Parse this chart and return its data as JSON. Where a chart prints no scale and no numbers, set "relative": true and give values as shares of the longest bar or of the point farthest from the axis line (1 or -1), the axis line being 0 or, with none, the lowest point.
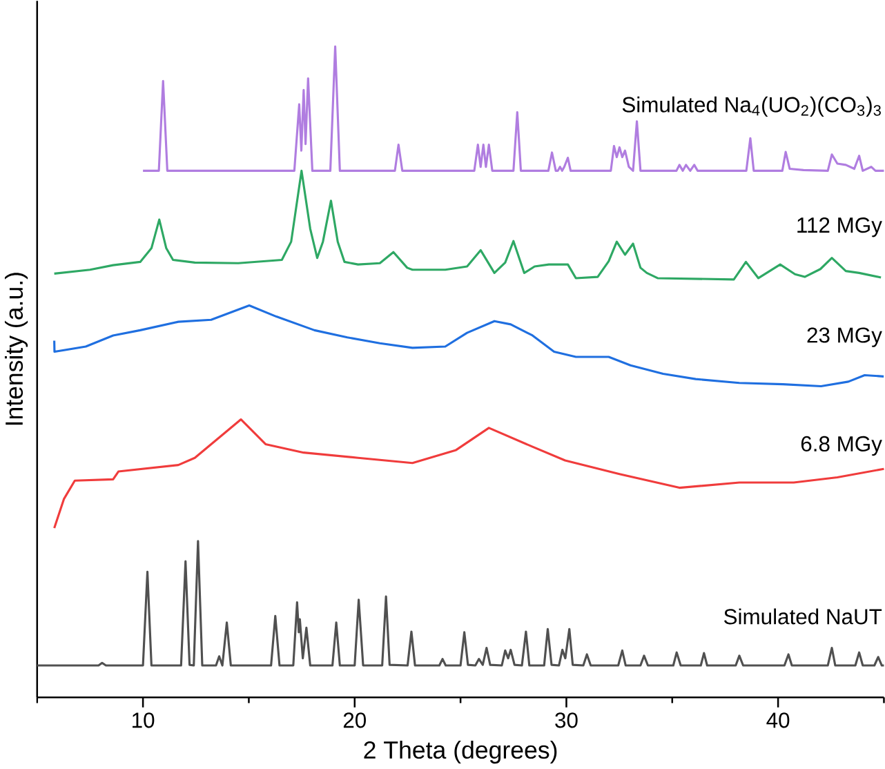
{
  "chart_data": {
    "type": "line",
    "relative": true,
    "xlabel": "2 Theta (degrees)",
    "ylabel": "Intensity (a.u.)",
    "xlim": [
      5,
      45
    ],
    "xticks": [
      {
        "value": 5,
        "label": null
      },
      10,
      {
        "value": 15,
        "label": null
      },
      20,
      {
        "value": 25,
        "label": null
      },
      30,
      {
        "value": 35,
        "label": null
      },
      40,
      {
        "value": 45,
        "label": null
      }
    ],
    "series": [
      {
        "name": "Simulated Na$_{4}$(UO$_{2}$)(CO$_{3}$)$_{3}$",
        "color": "#b07de0",
        "x": [
          10.0,
          10.75,
          10.95,
          11.15,
          17.15,
          17.38,
          17.48,
          17.59,
          17.68,
          17.8,
          18.0,
          18.85,
          19.08,
          19.3,
          21.9,
          22.07,
          22.25,
          25.65,
          25.82,
          25.95,
          26.08,
          26.2,
          26.34,
          26.5,
          27.5,
          27.68,
          27.85,
          29.15,
          29.32,
          29.5,
          29.6,
          29.7,
          29.8,
          29.9,
          30.07,
          30.2,
          32.1,
          32.25,
          32.38,
          32.51,
          32.64,
          32.77,
          32.95,
          33.15,
          33.33,
          33.5,
          35.2,
          35.34,
          35.5,
          35.65,
          35.85,
          36.04,
          36.2,
          38.5,
          38.69,
          38.85,
          40.2,
          40.36,
          40.55,
          41.2,
          42.35,
          42.54,
          42.8,
          43.2,
          43.6,
          43.83,
          44.0,
          44.4,
          44.6,
          45
        ],
        "values": [
          0.809,
          0.809,
          0.947,
          0.809,
          0.809,
          0.911,
          0.84,
          0.933,
          0.85,
          0.951,
          0.809,
          0.809,
          1.0,
          0.809,
          0.809,
          0.849,
          0.809,
          0.809,
          0.849,
          0.815,
          0.849,
          0.815,
          0.849,
          0.809,
          0.809,
          0.899,
          0.809,
          0.809,
          0.837,
          0.809,
          0.809,
          0.815,
          0.809,
          0.815,
          0.829,
          0.809,
          0.809,
          0.847,
          0.83,
          0.845,
          0.83,
          0.84,
          0.815,
          0.809,
          0.885,
          0.809,
          0.809,
          0.818,
          0.809,
          0.818,
          0.809,
          0.818,
          0.809,
          0.809,
          0.859,
          0.809,
          0.809,
          0.838,
          0.812,
          0.81,
          0.809,
          0.834,
          0.82,
          0.818,
          0.812,
          0.832,
          0.809,
          0.815,
          0.809,
          0.809
        ]
      },
      {
        "name": "112 MGy",
        "color": "#2ea864",
        "x": [
          5.81,
          7.5,
          8.59,
          9.87,
          10.4,
          10.77,
          11.1,
          11.42,
          12.45,
          14.5,
          16.56,
          17.0,
          17.49,
          17.9,
          18.23,
          18.5,
          18.88,
          19.2,
          19.52,
          20.16,
          21.19,
          21.83,
          22.48,
          22.73,
          24.28,
          25.31,
          25.95,
          26.6,
          27.11,
          27.5,
          28.01,
          28.5,
          29.17,
          30.07,
          30.45,
          31.48,
          32.0,
          32.38,
          32.77,
          33.15,
          33.5,
          33.8,
          34.31,
          37.91,
          38.48,
          39.07,
          40.1,
          40.8,
          41.26,
          42.0,
          42.54,
          43.2,
          43.83,
          44.86
        ],
        "values": [
          0.651,
          0.657,
          0.664,
          0.669,
          0.69,
          0.734,
          0.69,
          0.672,
          0.668,
          0.667,
          0.672,
          0.7,
          0.809,
          0.72,
          0.675,
          0.7,
          0.763,
          0.7,
          0.669,
          0.665,
          0.667,
          0.684,
          0.66,
          0.657,
          0.657,
          0.662,
          0.687,
          0.652,
          0.668,
          0.701,
          0.652,
          0.662,
          0.665,
          0.665,
          0.644,
          0.646,
          0.67,
          0.7,
          0.68,
          0.697,
          0.66,
          0.652,
          0.644,
          0.642,
          0.669,
          0.644,
          0.665,
          0.65,
          0.646,
          0.658,
          0.675,
          0.655,
          0.652,
          0.645
        ]
      },
      {
        "name": "23 MGy",
        "color": "#1f6fe0",
        "x": [
          5.81,
          5.82,
          7.3,
          8.59,
          9.87,
          11.67,
          13.22,
          15.02,
          16.3,
          18.1,
          19.65,
          21.19,
          22.73,
          24.28,
          25.31,
          26.6,
          27.37,
          28.4,
          29.42,
          30.45,
          32.0,
          33.03,
          34.57,
          36.11,
          38.17,
          40.23,
          42.03,
          43.32,
          44.09,
          44.99
        ],
        "values": [
          0.548,
          0.531,
          0.539,
          0.556,
          0.564,
          0.577,
          0.58,
          0.602,
          0.585,
          0.564,
          0.553,
          0.544,
          0.537,
          0.539,
          0.56,
          0.578,
          0.573,
          0.556,
          0.531,
          0.523,
          0.523,
          0.51,
          0.497,
          0.489,
          0.483,
          0.481,
          0.478,
          0.485,
          0.495,
          0.493
        ]
      },
      {
        "name": "6.8 MGy",
        "color": "#f03c3c",
        "x": [
          5.81,
          6.27,
          6.78,
          8.59,
          8.84,
          11.67,
          12.45,
          14.63,
          15.79,
          17.59,
          20.16,
          22.73,
          24.79,
          26.34,
          28.4,
          29.94,
          32.51,
          35.34,
          38.17,
          40.74,
          42.8,
          45
        ],
        "values": [
          0.26,
          0.305,
          0.333,
          0.335,
          0.347,
          0.357,
          0.368,
          0.427,
          0.389,
          0.376,
          0.368,
          0.36,
          0.38,
          0.414,
          0.385,
          0.364,
          0.343,
          0.322,
          0.33,
          0.33,
          0.338,
          0.351
        ]
      },
      {
        "name": "Simulated NaUT",
        "color": "#505050",
        "x": [
          5,
          7.9,
          8.07,
          8.25,
          10.0,
          10.21,
          10.4,
          11.8,
          12.01,
          12.2,
          12.4,
          12.6,
          12.8,
          13.45,
          13.6,
          13.75,
          13.96,
          14.15,
          16.05,
          16.25,
          16.45,
          17.1,
          17.28,
          17.36,
          17.41,
          17.55,
          17.72,
          17.9,
          18.95,
          19.13,
          19.3,
          20.0,
          20.19,
          20.4,
          21.3,
          21.48,
          21.65,
          22.5,
          22.68,
          22.85,
          24.0,
          24.15,
          24.3,
          25.0,
          25.18,
          25.35,
          25.7,
          25.87,
          26.05,
          26.23,
          26.4,
          26.95,
          27.11,
          27.25,
          27.37,
          27.55,
          27.9,
          28.09,
          28.25,
          28.95,
          29.12,
          29.3,
          29.65,
          29.81,
          29.95,
          30.14,
          30.3,
          30.8,
          30.97,
          31.15,
          32.45,
          32.64,
          32.8,
          33.5,
          33.67,
          33.85,
          35.05,
          35.21,
          35.4,
          36.35,
          36.5,
          36.65,
          38.0,
          38.17,
          38.35,
          40.3,
          40.49,
          40.65,
          42.35,
          42.54,
          42.7,
          43.65,
          43.83,
          44.0,
          44.55,
          44.73,
          44.9,
          45
        ],
        "values": [
          0.049,
          0.049,
          0.053,
          0.049,
          0.049,
          0.193,
          0.049,
          0.049,
          0.209,
          0.05,
          0.049,
          0.24,
          0.049,
          0.049,
          0.063,
          0.049,
          0.115,
          0.049,
          0.049,
          0.125,
          0.049,
          0.049,
          0.146,
          0.1,
          0.12,
          0.06,
          0.107,
          0.049,
          0.049,
          0.115,
          0.049,
          0.049,
          0.15,
          0.049,
          0.049,
          0.155,
          0.05,
          0.049,
          0.101,
          0.049,
          0.049,
          0.059,
          0.049,
          0.049,
          0.1,
          0.05,
          0.049,
          0.059,
          0.05,
          0.076,
          0.05,
          0.049,
          0.072,
          0.06,
          0.073,
          0.05,
          0.049,
          0.101,
          0.049,
          0.049,
          0.105,
          0.05,
          0.049,
          0.073,
          0.06,
          0.105,
          0.05,
          0.049,
          0.066,
          0.049,
          0.049,
          0.072,
          0.049,
          0.049,
          0.064,
          0.049,
          0.049,
          0.069,
          0.049,
          0.049,
          0.068,
          0.049,
          0.049,
          0.064,
          0.049,
          0.049,
          0.066,
          0.049,
          0.049,
          0.076,
          0.049,
          0.049,
          0.069,
          0.049,
          0.049,
          0.062,
          0.049,
          0.049
        ]
      }
    ]
  }
}
